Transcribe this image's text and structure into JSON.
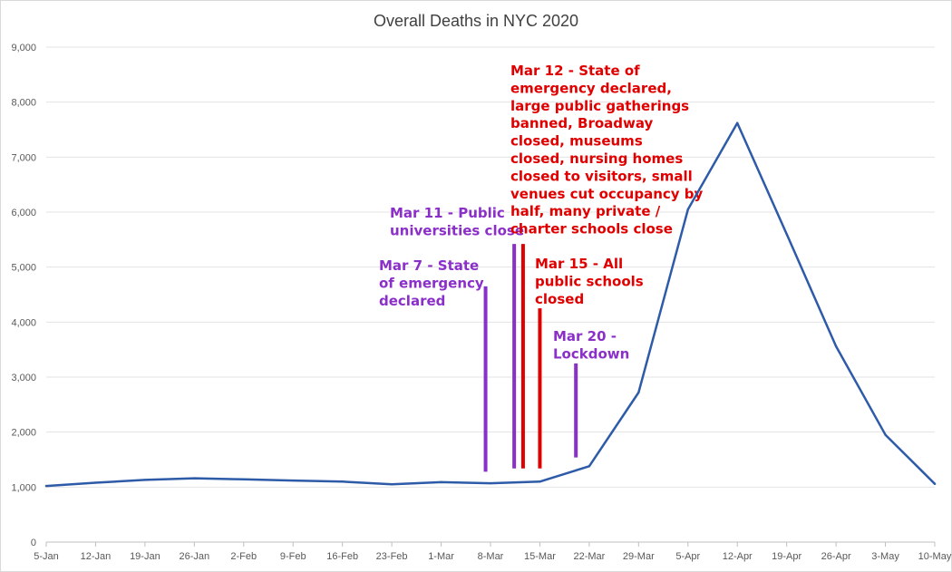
{
  "chart_data": {
    "type": "line",
    "title": "Overall Deaths in NYC 2020",
    "x": [
      "5-Jan",
      "12-Jan",
      "19-Jan",
      "26-Jan",
      "2-Feb",
      "9-Feb",
      "16-Feb",
      "23-Feb",
      "1-Mar",
      "8-Mar",
      "15-Mar",
      "22-Mar",
      "29-Mar",
      "5-Apr",
      "12-Apr",
      "19-Apr",
      "26-Apr",
      "3-May",
      "10-May"
    ],
    "series": [
      {
        "values": [
          1020,
          1080,
          1130,
          1160,
          1140,
          1120,
          1100,
          1050,
          1090,
          1070,
          1100,
          1380,
          2720,
          6050,
          7620,
          5600,
          3560,
          1950,
          1060
        ]
      }
    ],
    "ylim": [
      0,
      9000
    ],
    "yticks": [
      "0",
      "1,000",
      "2,000",
      "3,000",
      "4,000",
      "5,000",
      "6,000",
      "7,000",
      "8,000",
      "9,000"
    ],
    "ytick_values": [
      0,
      1000,
      2000,
      3000,
      4000,
      5000,
      6000,
      7000,
      8000,
      9000
    ],
    "grid": true,
    "line_color": "#2E5BA8",
    "annotations": [
      {
        "text": "Mar 7 - State\nof emergency\ndeclared",
        "color": "#8B2FC9",
        "line_x": 8.9,
        "line_y": [
          1280,
          4650
        ]
      },
      {
        "text": "Mar 11 - Public\nuniversities close",
        "color": "#8B2FC9",
        "line_x": 9.48,
        "line_y": [
          1340,
          5420
        ]
      },
      {
        "text": "Mar 12 - State of\nemergency declared,\nlarge public gatherings\nbanned, Broadway\nclosed, museums\nclosed, nursing homes\nclosed to visitors, small\nvenues cut occupancy by\nhalf, many private /\ncharter schools close",
        "color": "#E00000",
        "line_x": 9.66,
        "line_y": [
          1340,
          5420
        ]
      },
      {
        "text": "Mar 15 - All\npublic schools\nclosed",
        "color": "#E00000",
        "line_x": 10.0,
        "line_y": [
          1340,
          4250
        ]
      },
      {
        "text": "Mar 20 -\nLockdown",
        "color": "#8B2FC9",
        "line_x": 10.73,
        "line_y": [
          1540,
          3250
        ]
      }
    ]
  }
}
